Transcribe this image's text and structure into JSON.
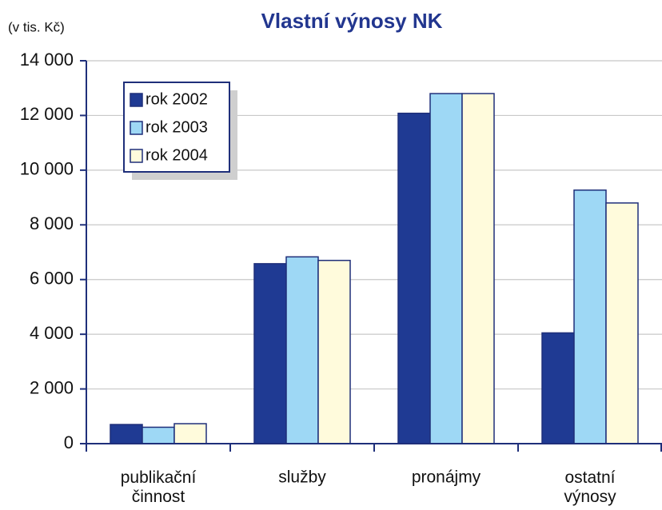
{
  "chart_data": {
    "type": "bar",
    "title": "Vlastní výnosy NK",
    "y_label": "(v tis. Kč)",
    "categories": [
      "publikační\nčinnost",
      "služby",
      "pronájmy",
      "ostatní\nvýnosy"
    ],
    "series": [
      {
        "name": "rok 2002",
        "color": "#1f3a93",
        "values": [
          700,
          6580,
          12080,
          4050
        ]
      },
      {
        "name": "rok 2003",
        "color": "#9ed8f5",
        "values": [
          600,
          6830,
          12800,
          9270
        ]
      },
      {
        "name": "rok 2004",
        "color": "#fffbdc",
        "values": [
          730,
          6700,
          12800,
          8800
        ]
      }
    ],
    "ylim": [
      0,
      14000
    ],
    "yticks": [
      0,
      {
        "value": 2000,
        "label": "2 000"
      },
      {
        "value": 4000,
        "label": "4 000"
      },
      {
        "value": 6000,
        "label": "6 000"
      },
      {
        "value": 8000,
        "label": "8 000"
      },
      {
        "value": 10000,
        "label": "10 000"
      },
      {
        "value": 12000,
        "label": "12 000"
      },
      {
        "value": 14000,
        "label": "14 000"
      }
    ],
    "grid": true,
    "legend": "upper left"
  }
}
